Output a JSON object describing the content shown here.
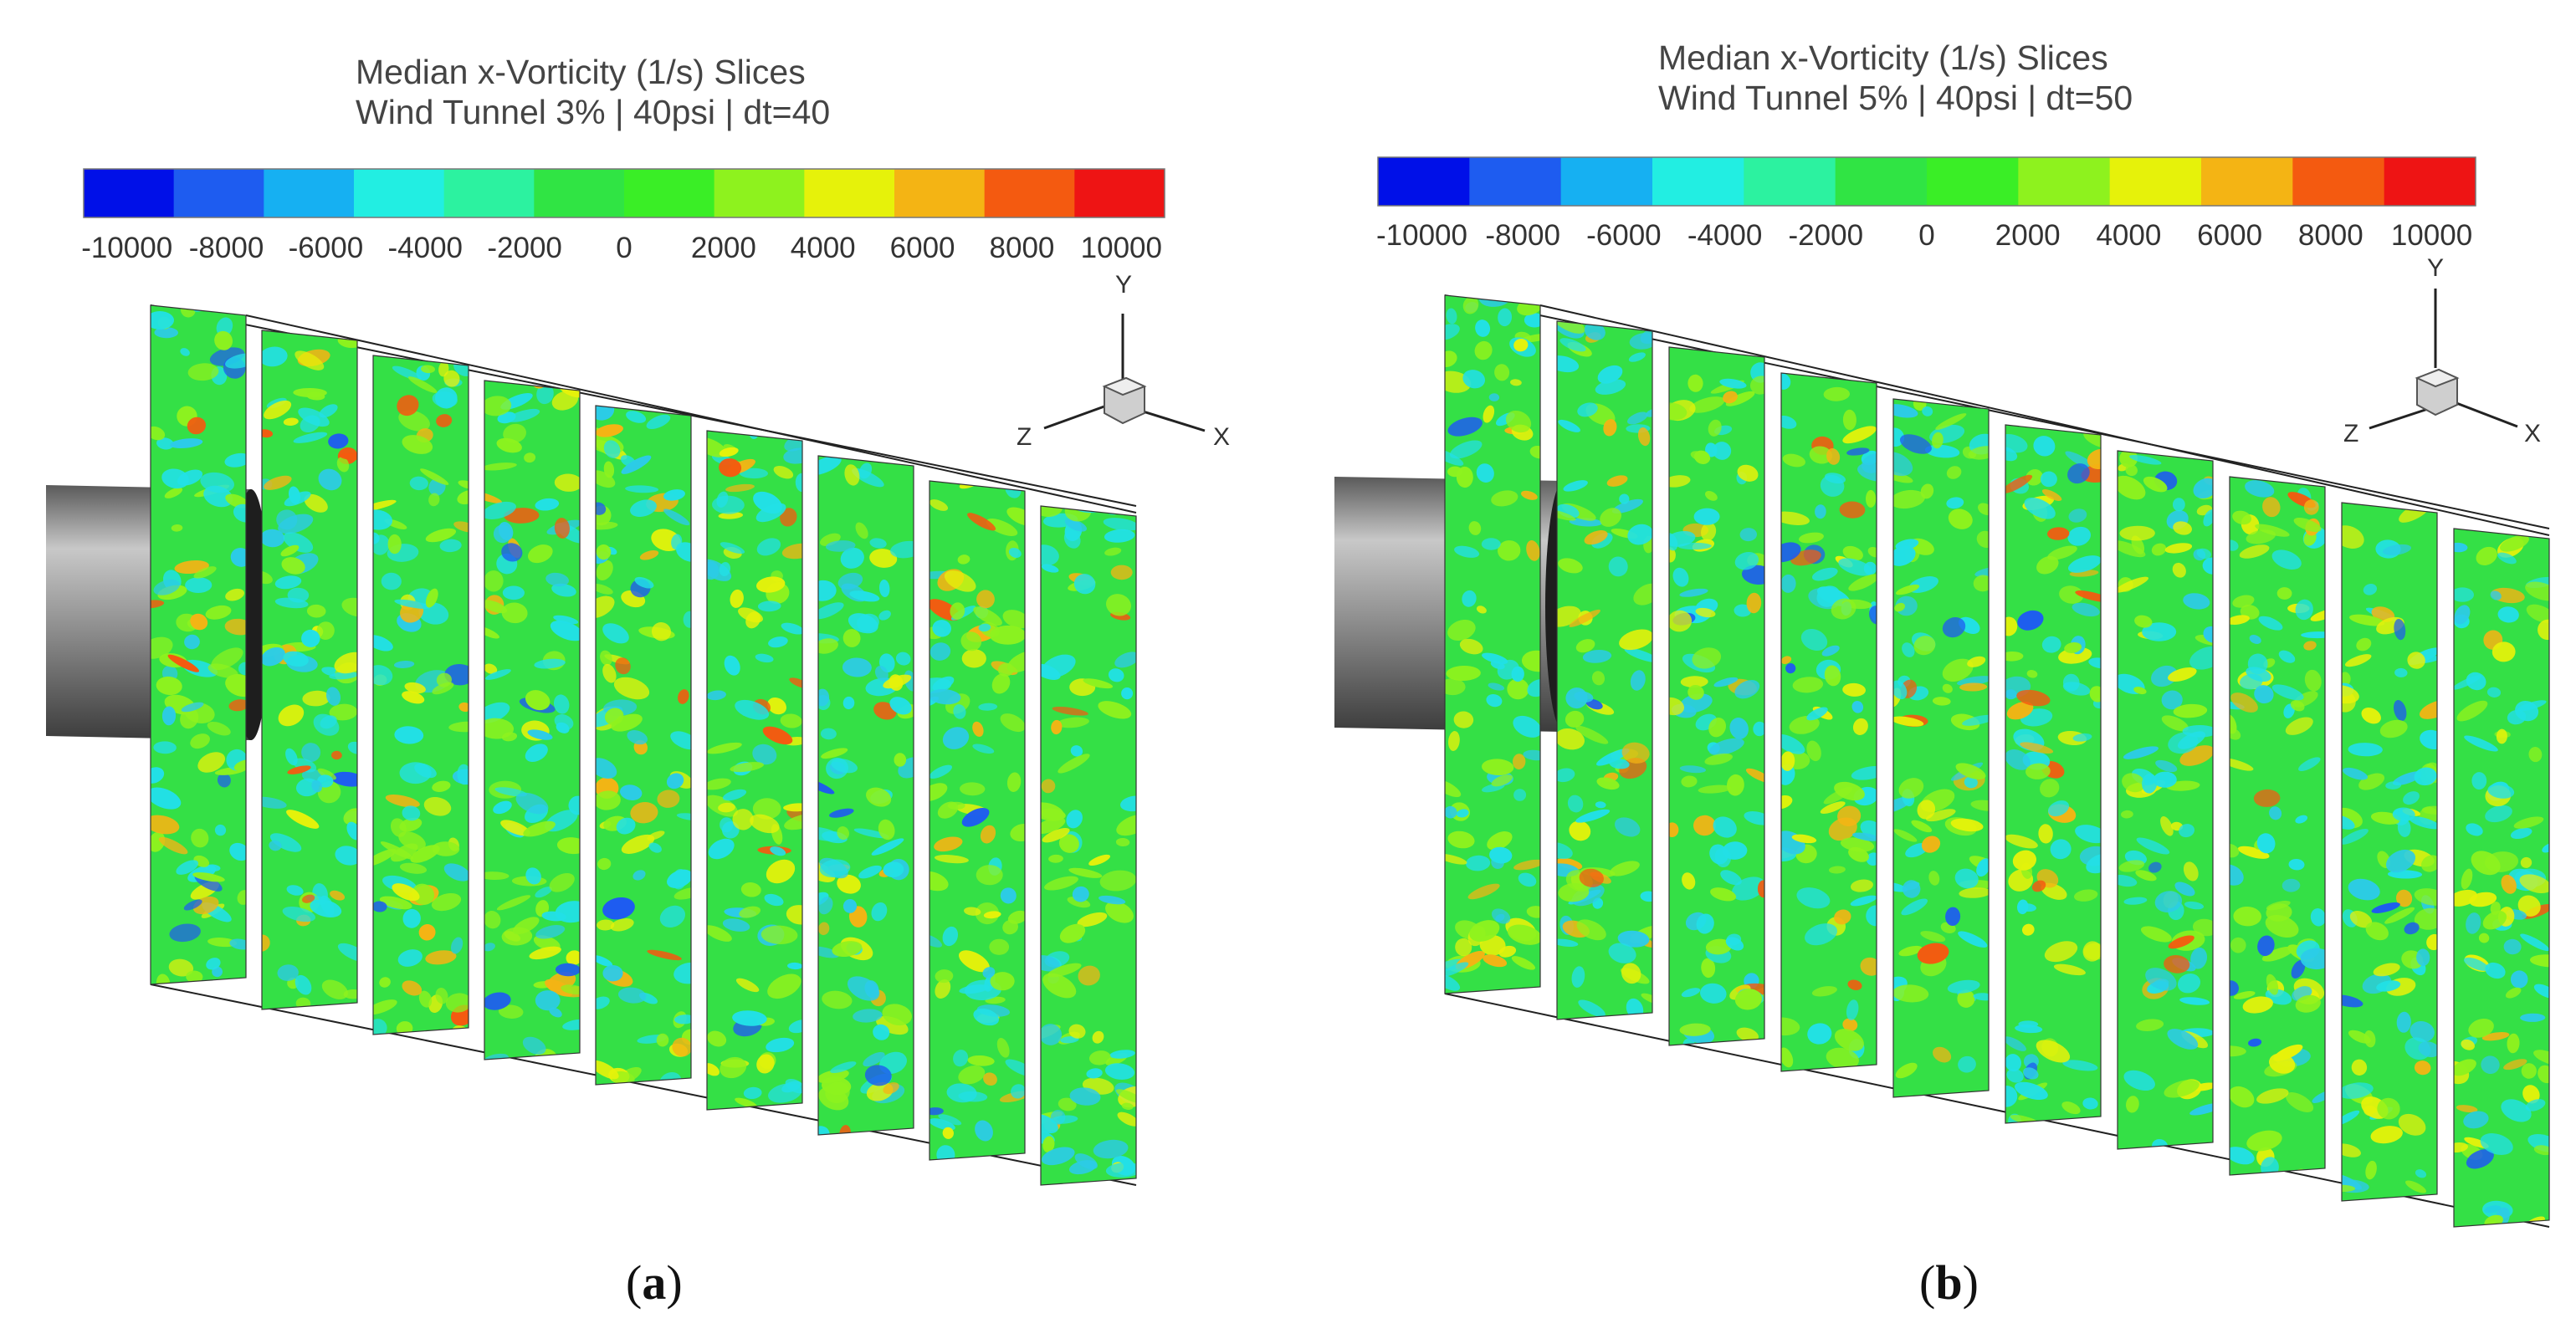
{
  "colorbar": {
    "colors": [
      "#0010e8",
      "#1e5cf0",
      "#16b0f2",
      "#22eee2",
      "#2cf2a0",
      "#30e444",
      "#3aee26",
      "#8ef21e",
      "#e6f20a",
      "#f4b414",
      "#f45a10",
      "#ee1414"
    ],
    "tick_values": [
      -10000,
      -8000,
      -6000,
      -4000,
      -2000,
      0,
      2000,
      4000,
      6000,
      8000,
      10000
    ]
  },
  "chart_data": [
    {
      "type": "heatmap",
      "panel": "a",
      "title": [
        "Median x-Vorticity (1/s) Slices",
        "Wind Tunnel 3% | 40psi | dt=40"
      ],
      "caption_label": "a",
      "colorbar_label": "Median x-Vorticity (1/s)",
      "colorbar_ticks": [
        "-10000",
        "-8000",
        "-6000",
        "-4000",
        "-2000",
        "0",
        "2000",
        "4000",
        "6000",
        "8000",
        "10000"
      ],
      "colorbar_range": [
        -10000,
        10000
      ],
      "slice_count": 9,
      "axes": [
        "Y",
        "Z",
        "X"
      ]
    },
    {
      "type": "heatmap",
      "panel": "b",
      "title": [
        "Median x-Vorticity (1/s) Slices",
        "Wind Tunnel 5% | 40psi | dt=50"
      ],
      "caption_label": "b",
      "colorbar_label": "Median x-Vorticity (1/s)",
      "colorbar_ticks": [
        "-10000",
        "-8000",
        "-6000",
        "-4000",
        "-2000",
        "0",
        "2000",
        "4000",
        "6000",
        "8000",
        "10000"
      ],
      "colorbar_range": [
        -10000,
        10000
      ],
      "slice_count": 10,
      "axes": [
        "Y",
        "Z",
        "X"
      ]
    }
  ]
}
